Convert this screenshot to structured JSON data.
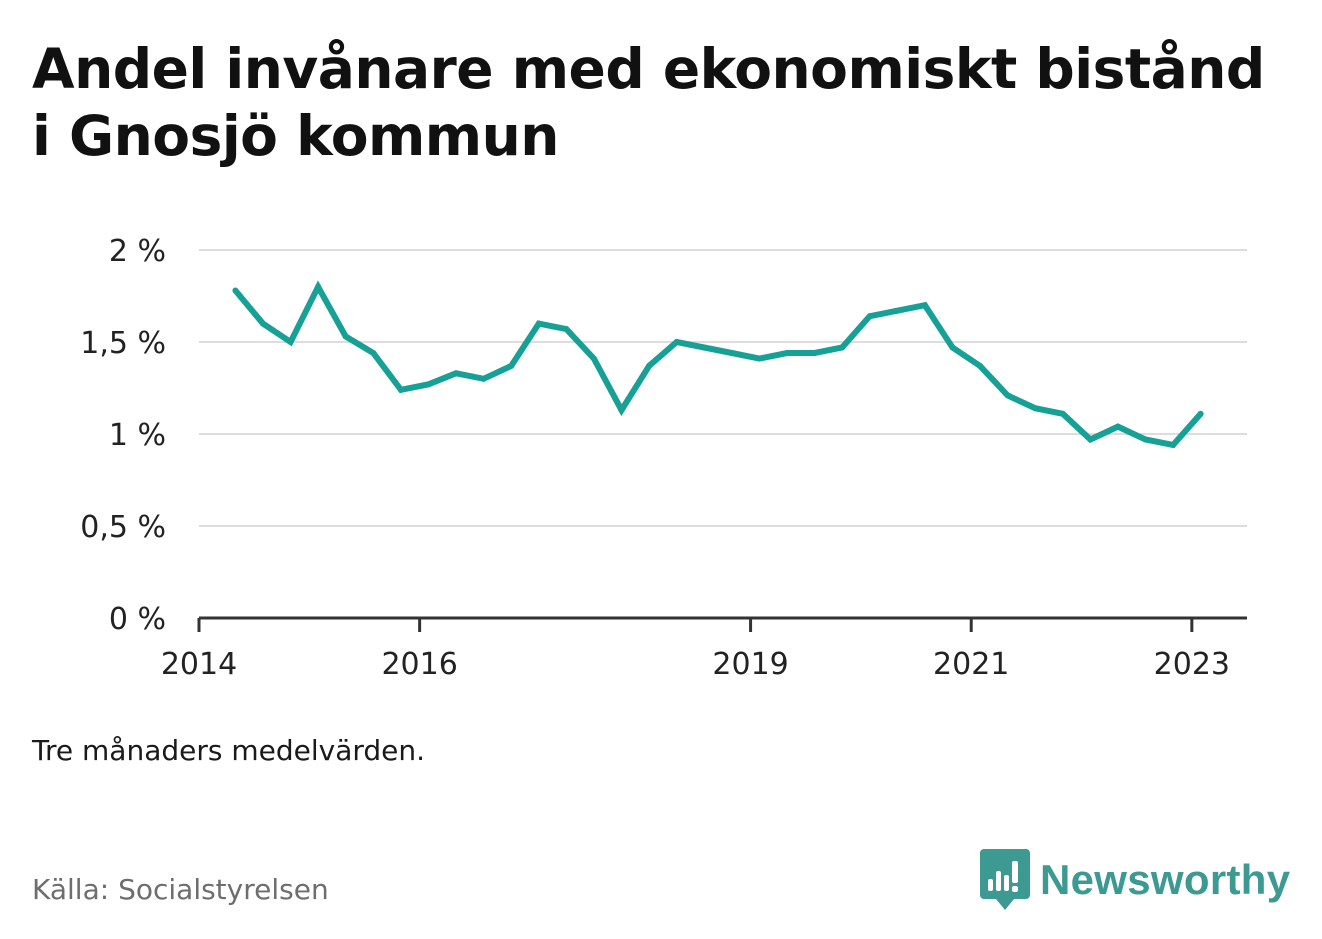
{
  "title": "Andel invånare med ekonomiskt bistånd i Gnosjö kommun",
  "note": "Tre månaders medelvärden.",
  "source": "Källa: Socialstyrelsen",
  "brand": {
    "name": "Newsworthy",
    "icon": "newsworthy-logo-icon",
    "color": "#3c9a93"
  },
  "colors": {
    "line": "#16a096",
    "grid": "#dddddd",
    "axis": "#333333",
    "text": "#222222"
  },
  "chart_data": {
    "type": "line",
    "title": "Andel invånare med ekonomiskt bistånd i Gnosjö kommun",
    "xlabel": "",
    "ylabel": "",
    "ylim": [
      0,
      2
    ],
    "yticks": [
      0,
      0.5,
      1,
      1.5,
      2
    ],
    "ytick_labels": [
      "0 %",
      "0,5 %",
      "1 %",
      "1,5 %",
      "2 %"
    ],
    "xlim": [
      2014.0,
      2023.5
    ],
    "xticks": [
      2014,
      2016,
      2019,
      2021,
      2023
    ],
    "xtick_labels": [
      "2014",
      "2016",
      "2019",
      "2021",
      "2023"
    ],
    "grid": true,
    "series": [
      {
        "x": [
          2014.33,
          2014.58,
          2014.83,
          2015.08,
          2015.33,
          2015.58,
          2015.83,
          2016.08,
          2016.33,
          2016.58,
          2016.83,
          2017.08,
          2017.33,
          2017.58,
          2017.83,
          2018.08,
          2018.33,
          2018.58,
          2018.83,
          2019.08,
          2019.33,
          2019.58,
          2019.83,
          2020.08,
          2020.33,
          2020.58,
          2020.83,
          2021.08,
          2021.33,
          2021.58,
          2021.83,
          2022.08,
          2022.33,
          2022.58,
          2022.83,
          2023.08
        ],
        "values": [
          1.78,
          1.6,
          1.5,
          1.8,
          1.53,
          1.44,
          1.24,
          1.27,
          1.33,
          1.3,
          1.37,
          1.6,
          1.57,
          1.41,
          1.13,
          1.37,
          1.5,
          1.47,
          1.44,
          1.41,
          1.44,
          1.44,
          1.47,
          1.64,
          1.67,
          1.7,
          1.47,
          1.37,
          1.21,
          1.14,
          1.11,
          0.97,
          1.04,
          0.97,
          0.94,
          1.11
        ]
      }
    ]
  }
}
